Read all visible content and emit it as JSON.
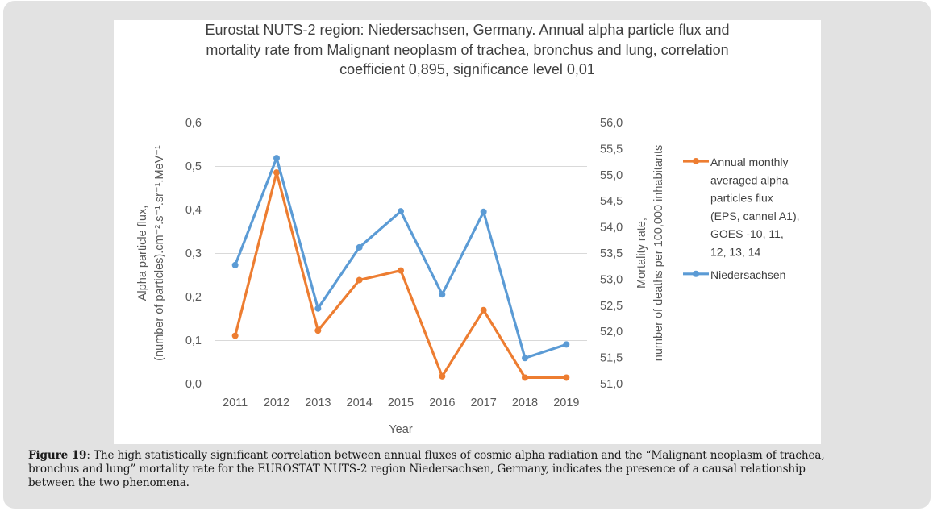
{
  "chart_data": {
    "type": "line",
    "title_lines": [
      "Eurostat NUTS-2 region: Niedersachsen, Germany. Annual alpha particle flux and",
      "mortality rate from Malignant neoplasm of trachea, bronchus and lung, correlation",
      "coefficient 0,895, significance level 0,01"
    ],
    "xlabel": "Year",
    "categories": [
      "2011",
      "2012",
      "2013",
      "2014",
      "2015",
      "2016",
      "2017",
      "2018",
      "2019"
    ],
    "y_left": {
      "label_lines": [
        "Alpha particle flux,",
        "(number of particles).cm⁻².s⁻¹.sr⁻¹.MeV⁻¹"
      ],
      "ylim": [
        0,
        0.6
      ],
      "ticks": [
        "0,0",
        "0,1",
        "0,2",
        "0,3",
        "0,4",
        "0,5",
        "0,6"
      ],
      "tick_values": [
        0,
        0.1,
        0.2,
        0.3,
        0.4,
        0.5,
        0.6
      ]
    },
    "y_right": {
      "label_lines": [
        "Mortality rate,",
        "number of deaths per 100,000 inhabitants"
      ],
      "ylim": [
        51.0,
        56.0
      ],
      "ticks": [
        "51,0",
        "51,5",
        "52,0",
        "52,5",
        "53,0",
        "53,5",
        "54,0",
        "54,5",
        "55,0",
        "55,5",
        "56,0"
      ],
      "tick_values": [
        51.0,
        51.5,
        52.0,
        52.5,
        53.0,
        53.5,
        54.0,
        54.5,
        55.0,
        55.5,
        56.0
      ]
    },
    "grid": true,
    "legend_position": "right",
    "series": [
      {
        "name": "Annual monthly averaged alpha particles flux (EPS, cannel A1), GOES -10, 11, 12, 13, 14",
        "legend_lines": [
          "Annual monthly",
          "averaged alpha",
          "particles flux",
          "(EPS, cannel A1),",
          "GOES -10, 11,",
          "12, 13, 14"
        ],
        "axis": "left",
        "color": "#ed7d31",
        "values": [
          0.11,
          0.485,
          0.122,
          0.238,
          0.26,
          0.017,
          0.169,
          0.014,
          0.014
        ]
      },
      {
        "name": "Niedersachsen",
        "legend_lines": [
          "Niedersachsen"
        ],
        "axis": "right",
        "color": "#5b9bd5",
        "values": [
          53.27,
          55.32,
          52.44,
          53.61,
          54.3,
          52.71,
          54.29,
          51.49,
          51.75
        ]
      }
    ]
  },
  "caption": {
    "label": "Figure 19",
    "lines": [
      ": The high statistically significant correlation between annual fluxes of cosmic alpha radiation and the “Malignant neoplasm of trachea,",
      "bronchus and lung” mortality rate for the EUROSTAT NUTS-2 region Niedersachsen, Germany, indicates the presence of a causal relationship",
      "between the two phenomena."
    ]
  }
}
